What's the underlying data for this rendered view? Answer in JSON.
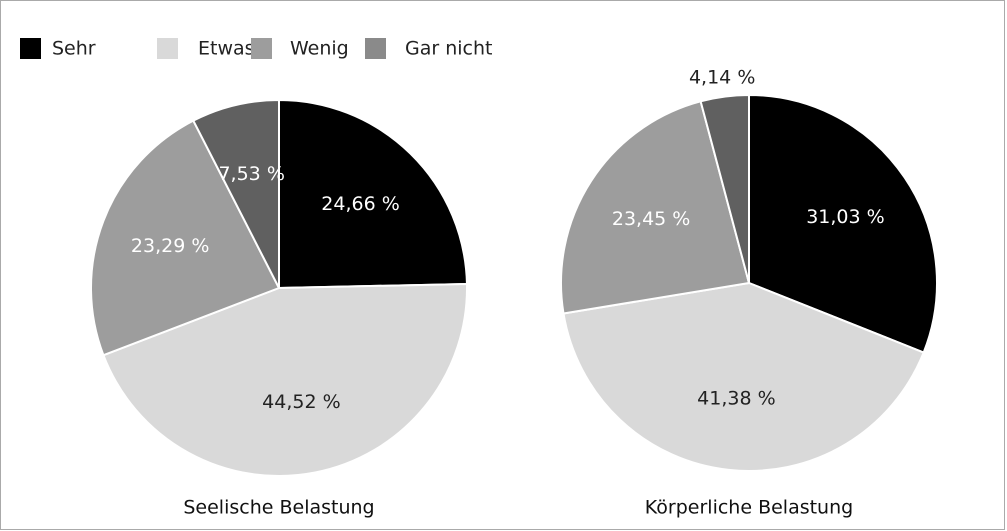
{
  "legend": {
    "labels": [
      "Sehr",
      "Etwas",
      "Wenig",
      "Gar nicht"
    ],
    "colors": [
      "#000000",
      "#d9d9d9",
      "#9d9d9d",
      "#8a8a8a"
    ]
  },
  "chart_data": [
    {
      "type": "pie",
      "title": "Seelische Belastung",
      "categories": [
        "Sehr",
        "Etwas",
        "Wenig",
        "Gar nicht"
      ],
      "values": [
        24.66,
        44.52,
        23.29,
        7.53
      ],
      "value_labels": [
        "24,66 %",
        "44,52 %",
        "23,29 %",
        "7,53 %"
      ],
      "colors": [
        "#000000",
        "#d9d9d9",
        "#9d9d9d",
        "#606060"
      ]
    },
    {
      "type": "pie",
      "title": "Körperliche Belastung",
      "categories": [
        "Sehr",
        "Etwas",
        "Wenig",
        "Gar nicht"
      ],
      "values": [
        31.03,
        41.38,
        23.45,
        4.14
      ],
      "value_labels": [
        "31,03 %",
        "41,38 %",
        "23,45 %",
        "4,14 %"
      ],
      "colors": [
        "#000000",
        "#d9d9d9",
        "#9d9d9d",
        "#606060"
      ]
    }
  ]
}
